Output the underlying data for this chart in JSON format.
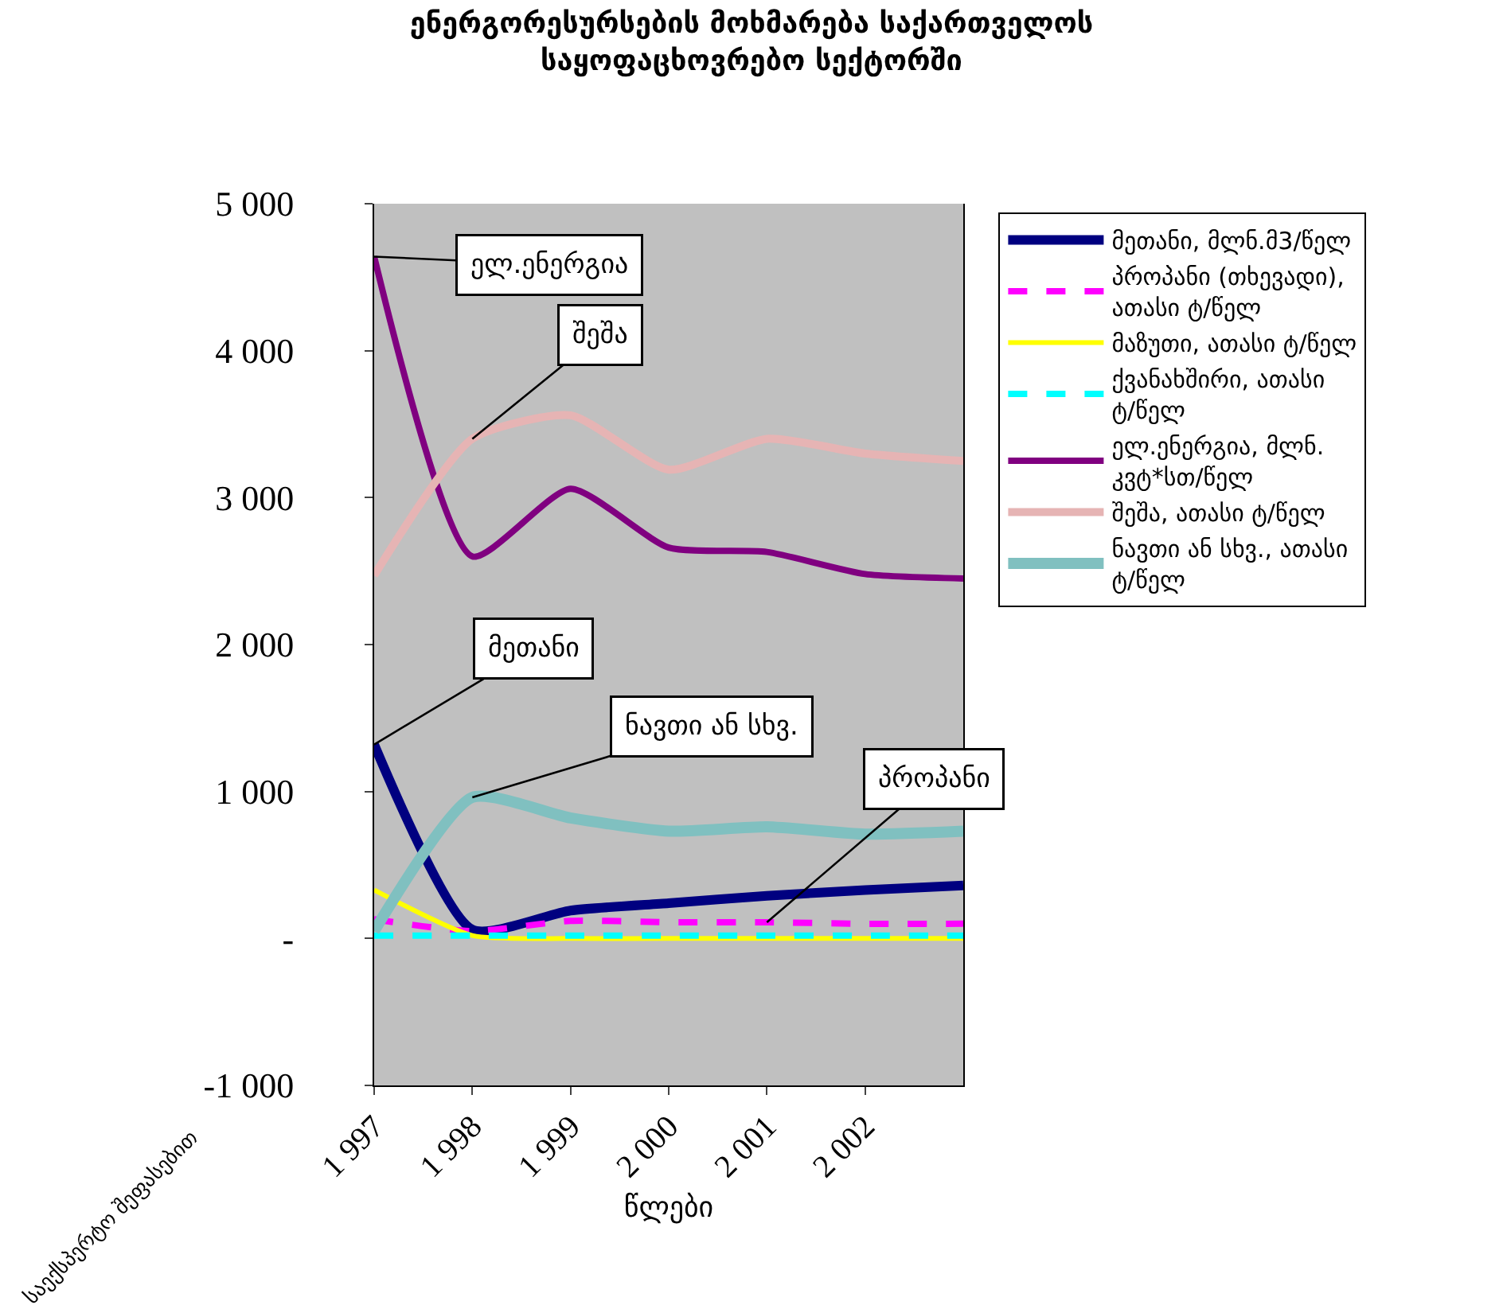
{
  "chart_data": {
    "type": "line",
    "title": "ენერგორესურსების მოხმარება საქართველოს საყოფაცხოვრებო სექტორში",
    "xlabel": "წლები",
    "ylabel": "საექსპერტო შეფასებით",
    "categories": [
      "1 997",
      "1 998",
      "1 999",
      "2 000",
      "2 001",
      "2 002",
      null
    ],
    "ylim": [
      -1000,
      5000
    ],
    "yticks": [
      {
        "value": -1000,
        "label": "-1 000"
      },
      {
        "value": 0,
        "label": "-"
      },
      {
        "value": 1000,
        "label": "1 000"
      },
      {
        "value": 2000,
        "label": "2 000"
      },
      {
        "value": 3000,
        "label": "3 000"
      },
      {
        "value": 4000,
        "label": "4 000"
      },
      {
        "value": 5000,
        "label": "5 000"
      }
    ],
    "grid": false,
    "legend": "right",
    "marker": "none",
    "series": [
      {
        "name": "მეთანი, მლნ.მ3/წელ",
        "color": "#000080",
        "line_style": "solid",
        "values": [
          1320,
          60,
          190,
          240,
          290,
          330,
          360
        ]
      },
      {
        "name": "პროპანი (თხევადი), ათასი ტ/წელ",
        "color": "#ff00ff",
        "line_style": "dashed",
        "values": [
          130,
          50,
          120,
          110,
          110,
          100,
          100
        ]
      },
      {
        "name": "მაზუთი, ათასი ტ/წელ",
        "color": "#ffff00",
        "line_style": "solid",
        "values": [
          330,
          20,
          0,
          0,
          0,
          0,
          0
        ]
      },
      {
        "name": "ქვანახშირი, ათასი ტ/წელ",
        "color": "#00ffff",
        "line_style": "dashed",
        "values": [
          20,
          20,
          20,
          20,
          20,
          20,
          20
        ]
      },
      {
        "name": "ელ.ენერგია, მლნ. კვტ*სთ/წელ",
        "color": "#800080",
        "line_style": "solid",
        "values": [
          4640,
          2600,
          3060,
          2660,
          2630,
          2480,
          2450
        ]
      },
      {
        "name": "შეშა, ათასი ტ/წელ",
        "color": "#e6b4b4",
        "line_style": "solid",
        "values": [
          2470,
          3400,
          3560,
          3190,
          3400,
          3300,
          3250
        ]
      },
      {
        "name": "ნავთი ან სხვ., ათასი ტ/წელ",
        "color": "#80c0c0",
        "line_style": "solid",
        "values": [
          50,
          960,
          820,
          730,
          760,
          710,
          730
        ]
      }
    ],
    "annotations": [
      {
        "text": "ელ.ენერგია",
        "x": "1 997",
        "y": 4640
      },
      {
        "text": "შეშა",
        "x": "1 998",
        "y": 3400
      },
      {
        "text": "მეთანი",
        "x": "1 997",
        "y": 1320
      },
      {
        "text": "ნავთი ან სხვ.",
        "x": "1 998",
        "y": 960
      },
      {
        "text": "პროპანი",
        "x": "2 001",
        "y": 110
      }
    ]
  }
}
